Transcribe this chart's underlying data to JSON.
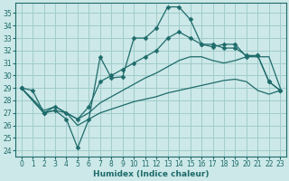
{
  "bg_color": "#cde8e8",
  "grid_color": "#a0cccc",
  "line_color": "#1e6b6b",
  "xlabel": "Humidex (Indice chaleur)",
  "xlim": [
    -0.5,
    23.5
  ],
  "ylim": [
    23.5,
    35.8
  ],
  "yticks": [
    24,
    25,
    26,
    27,
    28,
    29,
    30,
    31,
    32,
    33,
    34,
    35
  ],
  "xticks": [
    0,
    1,
    2,
    3,
    4,
    5,
    6,
    7,
    8,
    9,
    10,
    11,
    12,
    13,
    14,
    15,
    16,
    17,
    18,
    19,
    20,
    21,
    22,
    23
  ],
  "line1_x": [
    0,
    1,
    2,
    3,
    4,
    5,
    6,
    7,
    8,
    9,
    10,
    11,
    12,
    13,
    14,
    15,
    16,
    17,
    18,
    19,
    20,
    21,
    22,
    23
  ],
  "line1_y": [
    29.0,
    28.8,
    27.0,
    27.2,
    26.5,
    24.2,
    26.5,
    31.5,
    29.8,
    29.9,
    33.0,
    33.0,
    33.8,
    35.5,
    35.5,
    34.5,
    32.5,
    32.5,
    32.2,
    32.2,
    31.6,
    31.6,
    29.5,
    28.8
  ],
  "line2_x": [
    0,
    2,
    3,
    4,
    5,
    6,
    7,
    8,
    9,
    10,
    11,
    12,
    13,
    14,
    15,
    16,
    17,
    18,
    19,
    20,
    21,
    22,
    23
  ],
  "line2_y": [
    29.0,
    27.0,
    27.5,
    27.0,
    26.5,
    27.5,
    29.5,
    30.0,
    30.5,
    31.0,
    31.5,
    32.0,
    33.0,
    33.5,
    33.0,
    32.5,
    32.3,
    32.5,
    32.5,
    31.5,
    31.6,
    29.5,
    28.8
  ],
  "line3_x": [
    0,
    2,
    3,
    4,
    5,
    6,
    7,
    8,
    9,
    10,
    11,
    12,
    13,
    14,
    15,
    16,
    17,
    18,
    19,
    20,
    21,
    22,
    23
  ],
  "line3_y": [
    29.0,
    27.2,
    27.5,
    27.0,
    26.5,
    27.0,
    27.8,
    28.3,
    28.8,
    29.3,
    29.8,
    30.2,
    30.7,
    31.2,
    31.5,
    31.5,
    31.2,
    31.0,
    31.2,
    31.5,
    31.5,
    31.5,
    29.0
  ],
  "line4_x": [
    0,
    2,
    3,
    4,
    5,
    6,
    7,
    8,
    9,
    10,
    11,
    12,
    13,
    14,
    15,
    16,
    17,
    18,
    19,
    20,
    21,
    22,
    23
  ],
  "line4_y": [
    29.0,
    27.0,
    27.2,
    27.0,
    26.0,
    26.5,
    27.0,
    27.3,
    27.6,
    27.9,
    28.1,
    28.3,
    28.6,
    28.8,
    29.0,
    29.2,
    29.4,
    29.6,
    29.7,
    29.5,
    28.8,
    28.5,
    28.8
  ]
}
